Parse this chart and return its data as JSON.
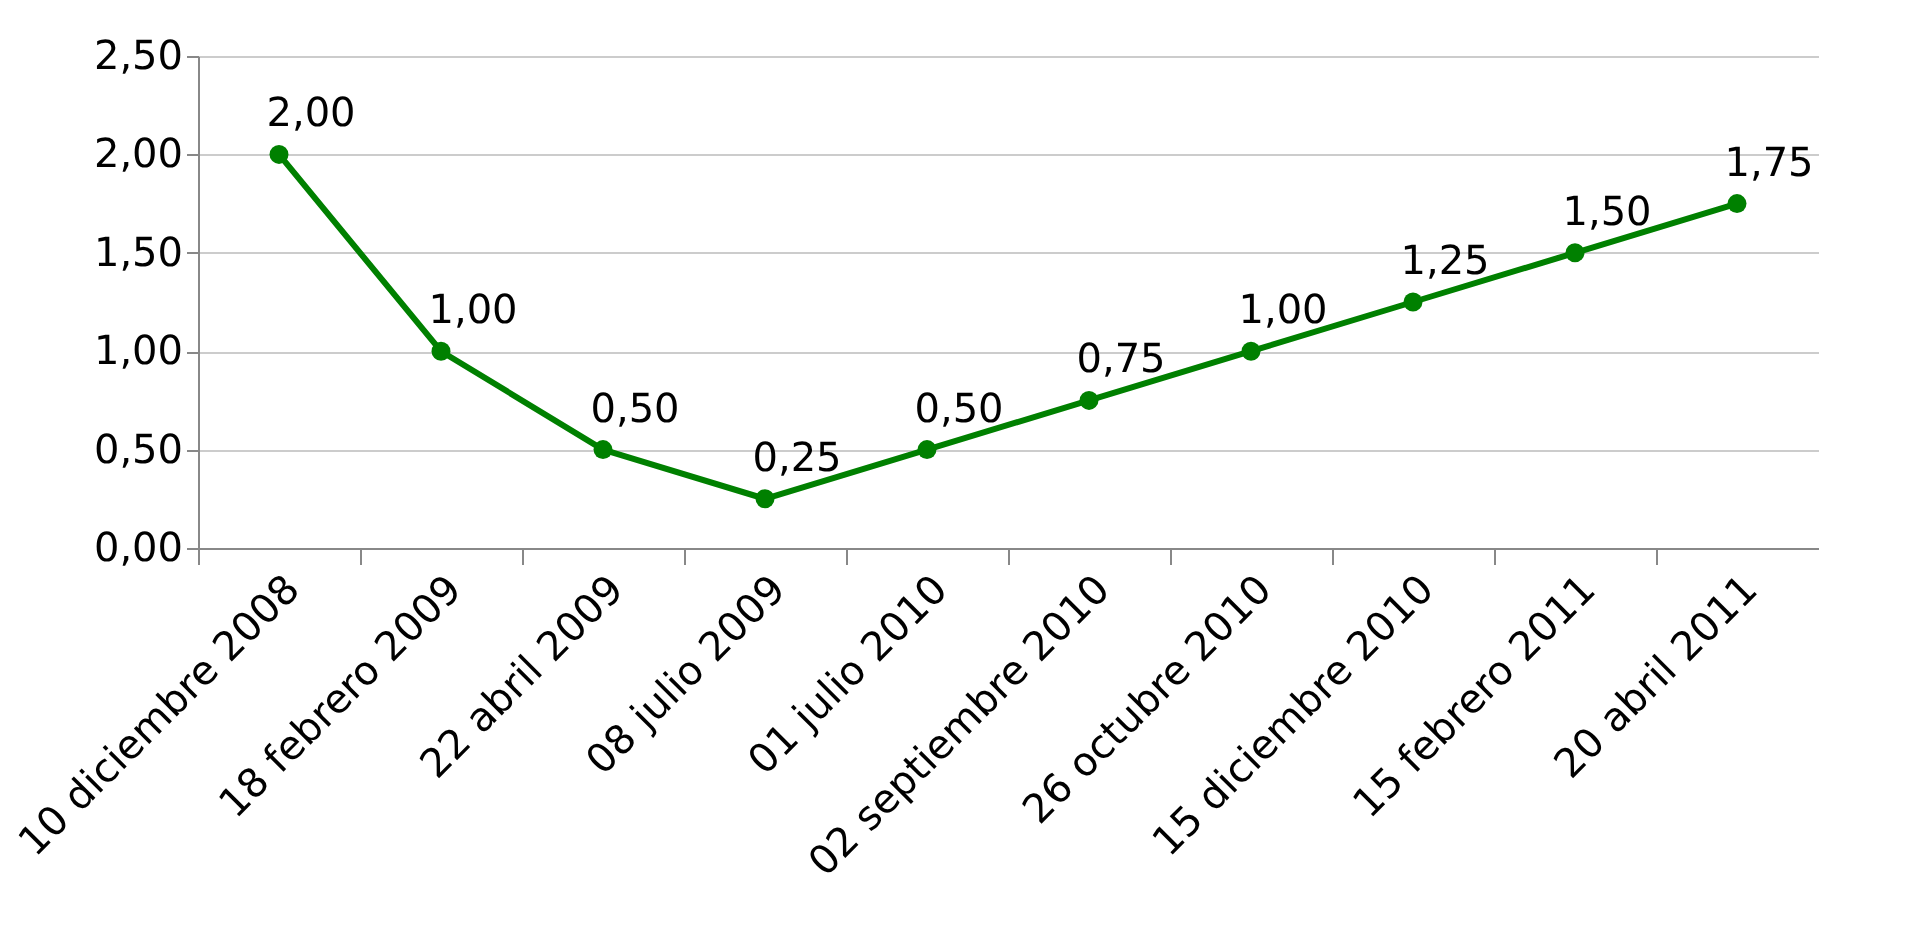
{
  "chart_data": {
    "type": "line",
    "categories": [
      "10 diciembre 2008",
      "18 febrero 2009",
      "22 abril 2009",
      "08 julio 2009",
      "01 julio 2010",
      "02 septiembre 2010",
      "26 octubre 2010",
      "15 diciembre 2010",
      "15 febrero 2011",
      "20 abril 2011"
    ],
    "series": [
      {
        "color": "#008000",
        "values": [
          2,
          1,
          0.5,
          0.25,
          0.5,
          0.75,
          1,
          1.25,
          1.5,
          1.75
        ],
        "value_labels": [
          "2,00",
          "1,00",
          "0,50",
          "0,25",
          "0,50",
          "0,75",
          "1,00",
          "1,25",
          "1,50",
          "1,75"
        ]
      }
    ],
    "ylim": [
      0,
      2.5
    ],
    "yticks": [
      {
        "value": 0,
        "label": "0,00"
      },
      {
        "value": 0.5,
        "label": "0,50"
      },
      {
        "value": 1,
        "label": "1,00"
      },
      {
        "value": 1.5,
        "label": "1,50"
      },
      {
        "value": 2,
        "label": "2,00"
      },
      {
        "value": 2.5,
        "label": "2,50"
      }
    ],
    "grid": "y",
    "marker": "circle",
    "line_style": "solid"
  }
}
